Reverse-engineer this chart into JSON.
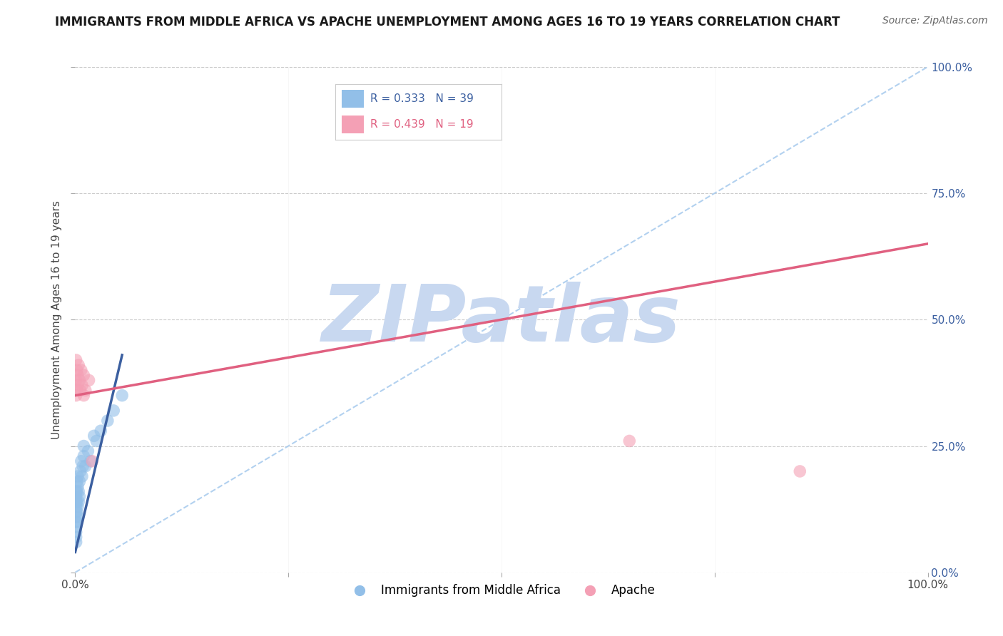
{
  "title": "IMMIGRANTS FROM MIDDLE AFRICA VS APACHE UNEMPLOYMENT AMONG AGES 16 TO 19 YEARS CORRELATION CHART",
  "source": "Source: ZipAtlas.com",
  "ylabel": "Unemployment Among Ages 16 to 19 years",
  "xlim": [
    0.0,
    1.0
  ],
  "ylim": [
    0.0,
    1.0
  ],
  "ytick_labels_right": [
    "0.0%",
    "25.0%",
    "50.0%",
    "75.0%",
    "100.0%"
  ],
  "blue_label": "Immigrants from Middle Africa",
  "pink_label": "Apache",
  "blue_R": 0.333,
  "blue_N": 39,
  "pink_R": 0.439,
  "pink_N": 19,
  "blue_color": "#92BFE8",
  "pink_color": "#F4A0B5",
  "blue_line_color": "#3B5FA0",
  "pink_line_color": "#E06080",
  "diagonal_line_color": "#AACCEE",
  "background_color": "#FFFFFF",
  "watermark": "ZIPatlas",
  "watermark_color": "#C8D8F0",
  "blue_x": [
    0.001,
    0.001,
    0.001,
    0.001,
    0.001,
    0.001,
    0.001,
    0.001,
    0.001,
    0.001,
    0.001,
    0.002,
    0.002,
    0.002,
    0.002,
    0.002,
    0.003,
    0.003,
    0.003,
    0.003,
    0.004,
    0.004,
    0.005,
    0.005,
    0.006,
    0.007,
    0.008,
    0.009,
    0.01,
    0.01,
    0.012,
    0.015,
    0.018,
    0.022,
    0.025,
    0.03,
    0.038,
    0.045,
    0.055
  ],
  "blue_y": [
    0.06,
    0.07,
    0.08,
    0.09,
    0.1,
    0.11,
    0.12,
    0.13,
    0.14,
    0.15,
    0.16,
    0.1,
    0.12,
    0.14,
    0.16,
    0.18,
    0.11,
    0.13,
    0.17,
    0.19,
    0.14,
    0.16,
    0.15,
    0.18,
    0.2,
    0.22,
    0.19,
    0.21,
    0.23,
    0.25,
    0.21,
    0.24,
    0.22,
    0.27,
    0.26,
    0.28,
    0.3,
    0.32,
    0.35
  ],
  "pink_x": [
    0.001,
    0.001,
    0.001,
    0.002,
    0.002,
    0.003,
    0.003,
    0.004,
    0.005,
    0.006,
    0.007,
    0.008,
    0.01,
    0.01,
    0.012,
    0.016,
    0.02,
    0.65,
    0.85
  ],
  "pink_y": [
    0.35,
    0.38,
    0.42,
    0.36,
    0.4,
    0.37,
    0.39,
    0.41,
    0.38,
    0.36,
    0.4,
    0.37,
    0.35,
    0.39,
    0.36,
    0.38,
    0.22,
    0.26,
    0.2
  ],
  "blue_trend_x0": 0.0,
  "blue_trend_y0": 0.04,
  "blue_trend_x1": 0.055,
  "blue_trend_y1": 0.43,
  "pink_trend_x0": 0.0,
  "pink_trend_y0": 0.35,
  "pink_trend_x1": 1.0,
  "pink_trend_y1": 0.65,
  "title_fontsize": 12,
  "source_fontsize": 10,
  "legend_fontsize": 12,
  "axis_label_fontsize": 11,
  "tick_fontsize": 11
}
